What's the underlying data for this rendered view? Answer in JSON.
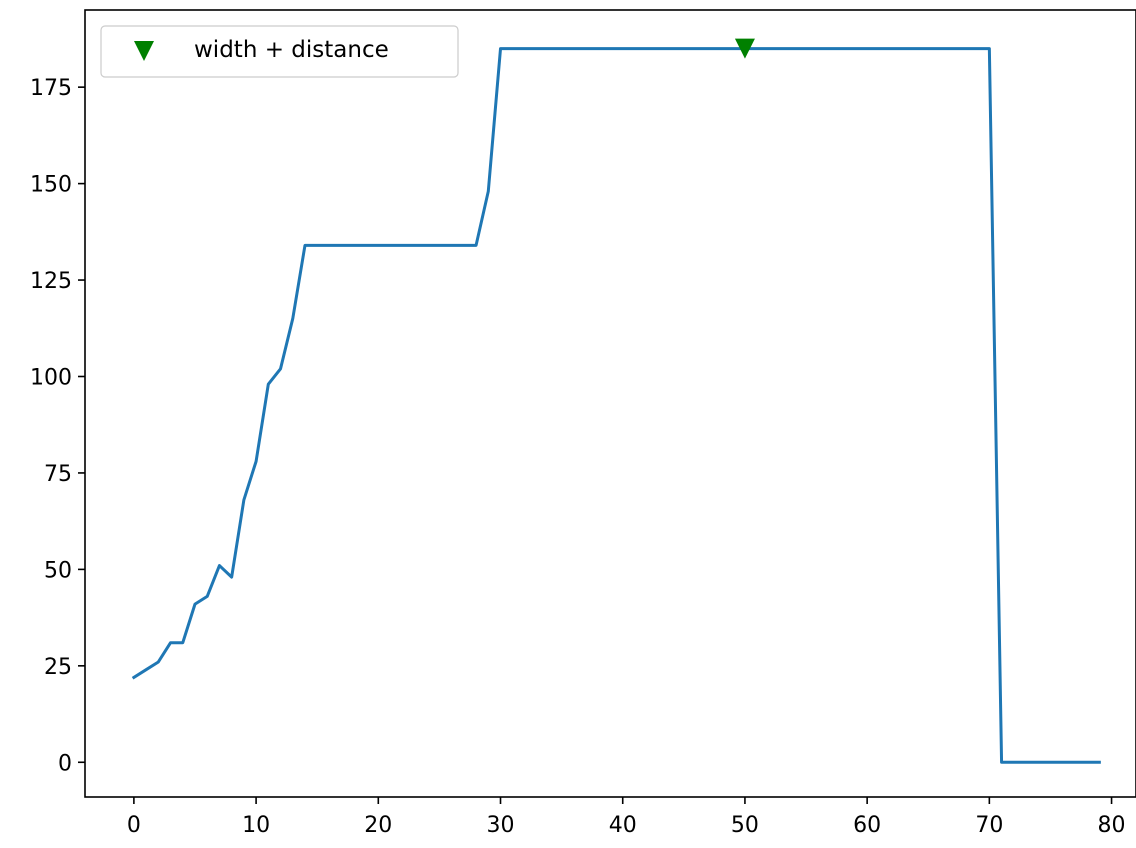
{
  "chart_data": {
    "type": "line",
    "title": "",
    "xlabel": "",
    "ylabel": "",
    "xlim": [
      -4,
      82
    ],
    "ylim": [
      -9,
      195
    ],
    "x_ticks": [
      0,
      10,
      20,
      30,
      40,
      50,
      60,
      70,
      80
    ],
    "y_ticks": [
      0,
      25,
      50,
      75,
      100,
      125,
      150,
      175
    ],
    "grid": false,
    "legend": {
      "position": "top-left",
      "entries": [
        {
          "label": "width + distance",
          "marker": "triangle-down",
          "color": "#008000"
        }
      ]
    },
    "series": [
      {
        "color": "#1f77b4",
        "x": [
          0,
          1,
          2,
          3,
          4,
          5,
          6,
          7,
          8,
          9,
          10,
          11,
          12,
          13,
          14,
          15,
          16,
          17,
          18,
          19,
          20,
          21,
          22,
          23,
          24,
          25,
          26,
          27,
          28,
          29,
          30,
          31,
          32,
          33,
          34,
          35,
          36,
          37,
          38,
          39,
          40,
          41,
          42,
          43,
          44,
          45,
          46,
          47,
          48,
          49,
          50,
          51,
          52,
          53,
          54,
          55,
          56,
          57,
          58,
          59,
          60,
          61,
          62,
          63,
          64,
          65,
          66,
          67,
          68,
          69,
          70,
          71,
          72,
          73,
          74,
          75,
          76,
          77,
          78,
          79
        ],
        "y": [
          22,
          24,
          26,
          31,
          31,
          41,
          43,
          51,
          48,
          68,
          78,
          98,
          102,
          115,
          134,
          134,
          134,
          134,
          134,
          134,
          134,
          134,
          134,
          134,
          134,
          134,
          134,
          134,
          134,
          148,
          185,
          185,
          185,
          185,
          185,
          185,
          185,
          185,
          185,
          185,
          185,
          185,
          185,
          185,
          185,
          185,
          185,
          185,
          185,
          185,
          185,
          185,
          185,
          185,
          185,
          185,
          185,
          185,
          185,
          185,
          185,
          185,
          185,
          185,
          185,
          185,
          185,
          185,
          185,
          185,
          185,
          0,
          0,
          0,
          0,
          0,
          0,
          0,
          0,
          0
        ]
      },
      {
        "name": "width + distance",
        "type": "scatter",
        "marker": "triangle-down",
        "color": "#008000",
        "x": [
          50
        ],
        "y": [
          185
        ]
      }
    ]
  }
}
